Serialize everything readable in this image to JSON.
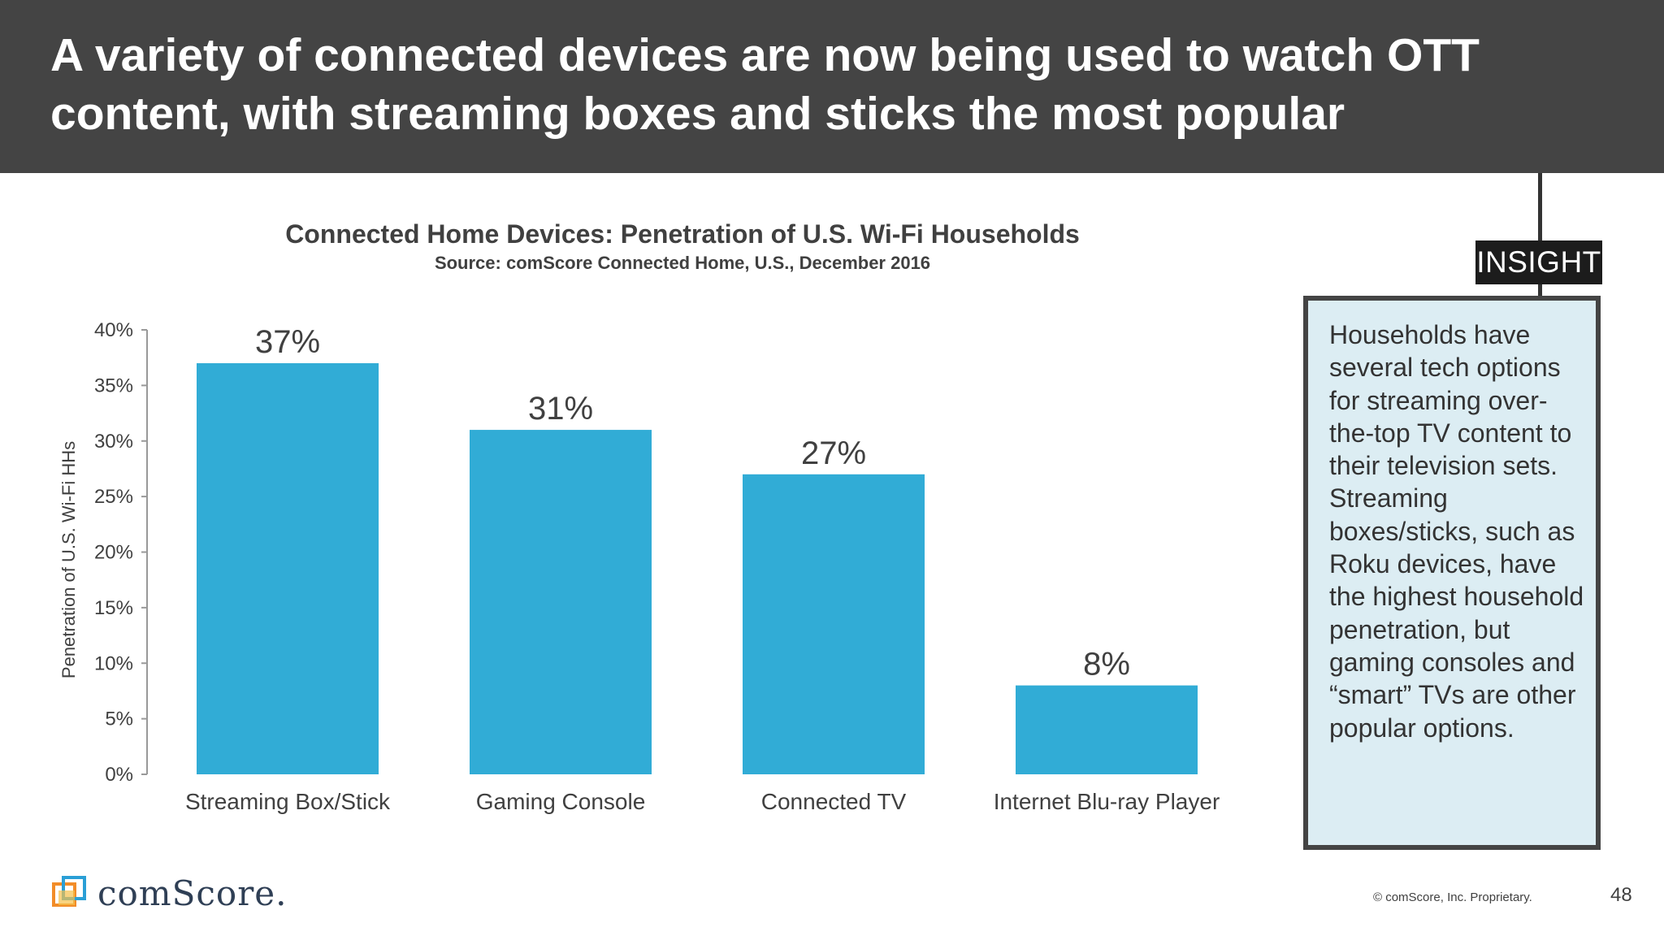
{
  "header": {
    "title": "A variety of connected devices are now being used to watch OTT content, with streaming boxes and sticks the most popular"
  },
  "chart_data": {
    "type": "bar",
    "title": "Connected Home Devices: Penetration of U.S. Wi-Fi Households",
    "subtitle": "Source: comScore Connected Home, U.S., December 2016",
    "categories": [
      "Streaming Box/Stick",
      "Gaming Console",
      "Connected TV",
      "Internet Blu-ray Player"
    ],
    "values": [
      37,
      31,
      27,
      8
    ],
    "data_labels": [
      "37%",
      "31%",
      "27%",
      "8%"
    ],
    "xlabel": "",
    "ylabel": "Penetration of U.S. Wi-Fi HHs",
    "ylim": [
      0,
      40
    ],
    "y_ticks": [
      0,
      5,
      10,
      15,
      20,
      25,
      30,
      35,
      40
    ],
    "y_tick_labels": [
      "0%",
      "5%",
      "10%",
      "15%",
      "20%",
      "25%",
      "30%",
      "35%",
      "40%"
    ],
    "bar_color": "#31acd6",
    "grid": false,
    "legend": "none"
  },
  "insight": {
    "tag": "INSIGHT",
    "text": "Households have several tech options for streaming over-the-top TV content to their television sets. Streaming boxes/sticks, such as Roku devices, have the highest household penetration, but gaming consoles and “smart” TVs are other popular options.",
    "box_color": "#dcedf3"
  },
  "footer": {
    "logo_text": "comScore.",
    "copyright": "© comScore, Inc. Proprietary.",
    "page_number": "48"
  }
}
